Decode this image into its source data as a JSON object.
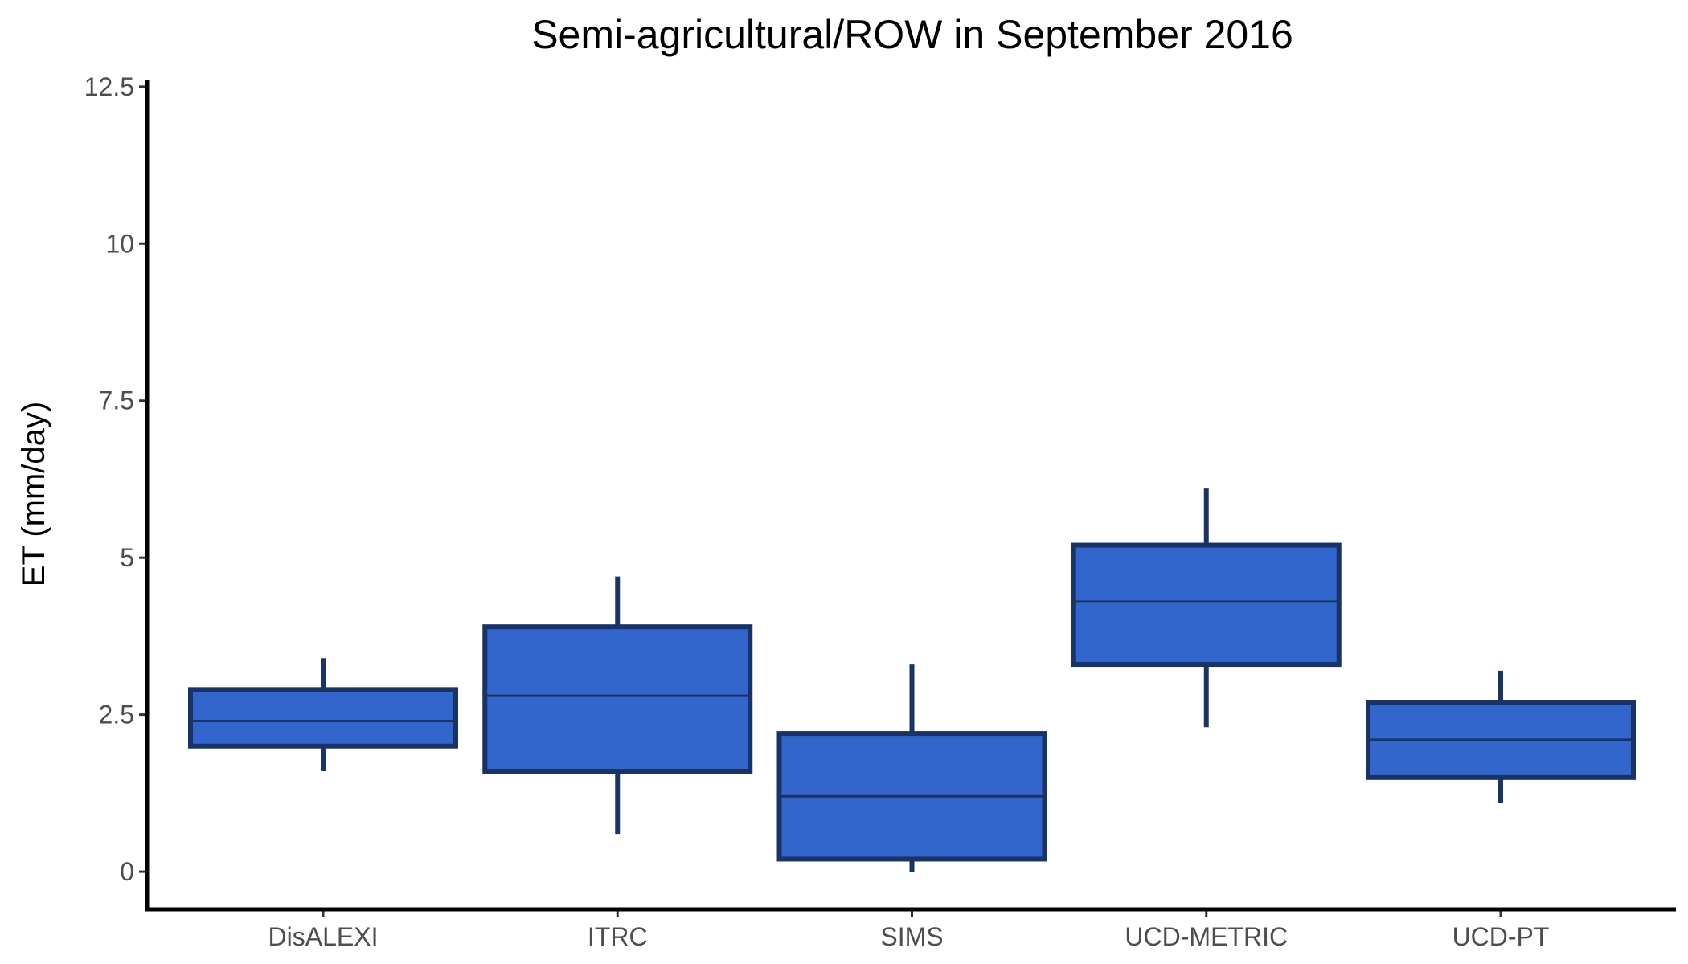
{
  "chart_data": {
    "type": "box",
    "title": "Semi-agricultural/ROW in September 2016",
    "xlabel": "",
    "ylabel": "ET (mm/day)",
    "ylim": [
      -0.6,
      12.6
    ],
    "yticks": [
      0,
      2.5,
      5,
      7.5,
      10,
      12.5
    ],
    "ytick_labels": [
      "0",
      "2.5",
      "5",
      "7.5",
      "10",
      "12.5"
    ],
    "categories": [
      "DisALEXI",
      "ITRC",
      "SIMS",
      "UCD-METRIC",
      "UCD-PT"
    ],
    "boxes": [
      {
        "category": "DisALEXI",
        "whisker_low": 1.6,
        "q1": 2.0,
        "median": 2.4,
        "q3": 2.9,
        "whisker_high": 3.4
      },
      {
        "category": "ITRC",
        "whisker_low": 0.6,
        "q1": 1.6,
        "median": 2.8,
        "q3": 3.9,
        "whisker_high": 4.7
      },
      {
        "category": "SIMS",
        "whisker_low": 0.0,
        "q1": 0.2,
        "median": 1.2,
        "q3": 2.2,
        "whisker_high": 3.3
      },
      {
        "category": "UCD-METRIC",
        "whisker_low": 2.3,
        "q1": 3.3,
        "median": 4.3,
        "q3": 5.2,
        "whisker_high": 6.1
      },
      {
        "category": "UCD-PT",
        "whisker_low": 1.1,
        "q1": 1.5,
        "median": 2.1,
        "q3": 2.7,
        "whisker_high": 3.2
      }
    ],
    "grid": false,
    "legend": "none",
    "colors": {
      "box_fill": "#3366cc",
      "box_outline": "#1a3366",
      "axis": "#000000"
    }
  }
}
